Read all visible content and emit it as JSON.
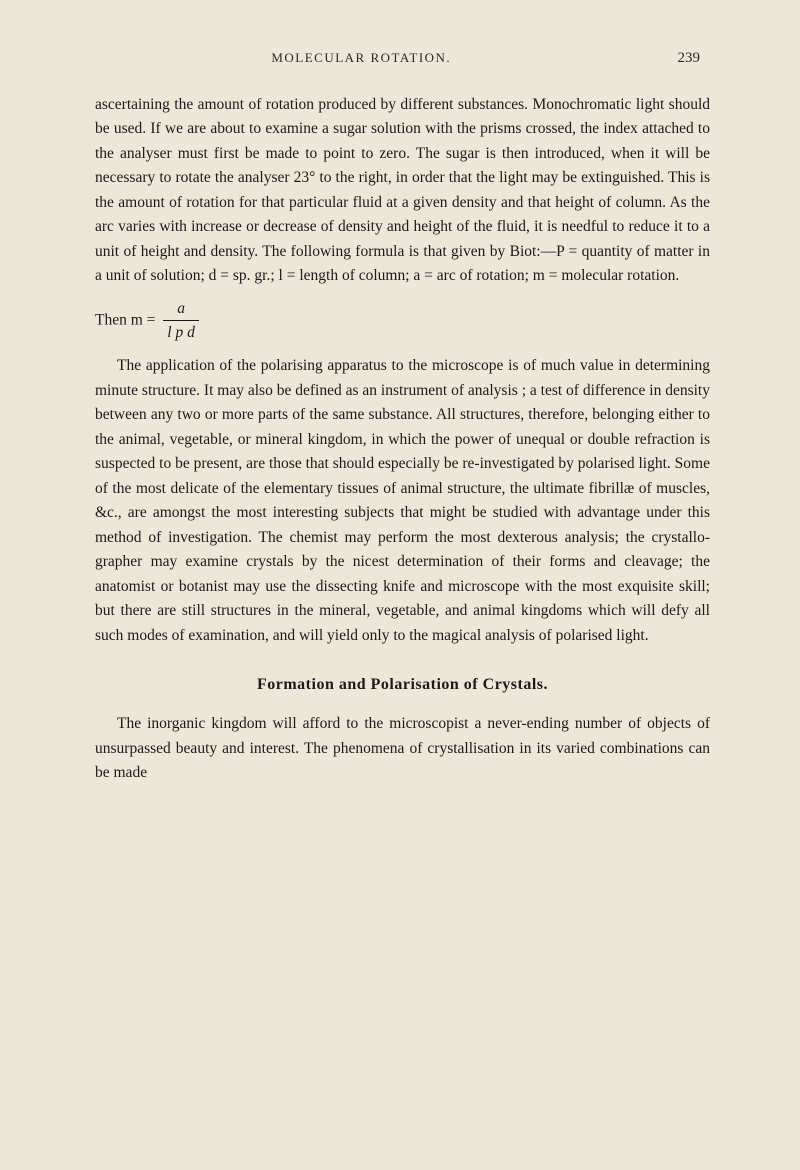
{
  "page": {
    "running_header": "MOLECULAR ROTATION.",
    "page_number": "239",
    "background_color": "#ede7d8",
    "text_color": "#1a1a1a",
    "font_family": "Georgia, Times New Roman, serif",
    "body_font_size": 15.5,
    "line_height": 1.58
  },
  "paragraphs": {
    "p1": "ascertaining the amount of rotation produced by different substances. Monochromatic light should be used. If we are about to examine a sugar solution with the prisms crossed, the index attached to the analyser must first be made to point to zero. The sugar is then introduced, when it will be necessary to rotate the analyser 23° to the right, in order that the light may be extinguished. This is the amount of rotation for that particular fluid at a given density and that height of column. As the arc varies with increase or decrease of density and height of the fluid, it is needful to reduce it to a unit of height and density. The following formula is that given by Biot:—P = quantity of matter in a unit of solution; d = sp. gr.; l = length of column; a = arc of rotation; m = molecular rotation.",
    "formula_prefix": "Then m = ",
    "formula_numerator": "a",
    "formula_denominator": "l p d",
    "p2": "The application of the polarising apparatus to the microscope is of much value in determining minute structure. It may also be defined as an instrument of analysis ; a test of difference in density between any two or more parts of the same substance. All structures, therefore, belonging either to the animal, vegetable, or mineral kingdom, in which the power of unequal or double refraction is suspected to be present, are those that should especially be re-investigated by polarised light. Some of the most delicate of the elementary tissues of animal structure, the ultimate fibrillæ of muscles, &c., are amongst the most interesting subjects that might be studied with advantage under this method of investigation. The chemist may perform the most dexterous analysis; the crystallo-grapher may examine crystals by the nicest determination of their forms and cleavage; the anatomist or botanist may use the dissecting knife and microscope with the most exquisite skill; but there are still structures in the mineral, vegetable, and animal kingdoms which will defy all such modes of examination, and will yield only to the magical analysis of polarised light.",
    "section_heading": "Formation and Polarisation of Crystals.",
    "p3": "The inorganic kingdom will afford to the microscopist a never-ending number of objects of unsurpassed beauty and interest. The phenomena of crystallisation in its varied combinations can be made"
  }
}
